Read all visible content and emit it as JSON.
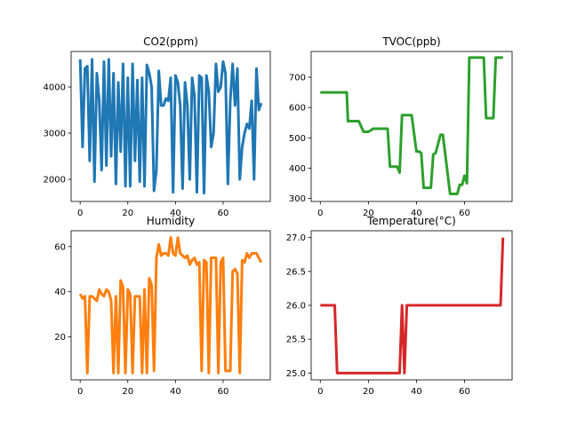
{
  "chart_data": [
    {
      "type": "line",
      "title": "CO2(ppm)",
      "color": "#1f77b4",
      "xlim": [
        -3.8,
        79.8
      ],
      "ylim": [
        1520,
        4770
      ],
      "xticks": [
        0,
        20,
        40,
        60
      ],
      "yticks": [
        2000,
        3000,
        4000
      ],
      "tick_labels_x": [
        "0",
        "20",
        "40",
        "60"
      ],
      "tick_labels_y": [
        "2000",
        "3000",
        "4000"
      ],
      "series": [
        {
          "x": [
            0,
            1,
            2,
            3,
            4,
            5,
            6,
            7,
            8,
            9,
            10,
            11,
            12,
            13,
            14,
            15,
            16,
            17,
            18,
            19,
            20,
            21,
            22,
            23,
            24,
            25,
            26,
            27,
            28,
            29,
            30,
            31,
            32,
            33,
            34,
            35,
            36,
            37,
            38,
            39,
            40,
            41,
            42,
            43,
            44,
            45,
            46,
            47,
            48,
            49,
            50,
            51,
            52,
            53,
            54,
            55,
            56,
            57,
            58,
            59,
            60,
            61,
            62,
            63,
            64,
            65,
            66,
            67,
            68,
            69,
            70,
            71,
            72,
            73,
            74,
            75,
            76
          ],
          "y": [
            4600,
            2700,
            4400,
            4450,
            2400,
            4600,
            1950,
            4300,
            3700,
            2200,
            4550,
            2300,
            4600,
            2500,
            4300,
            1900,
            4100,
            2600,
            4500,
            1850,
            4200,
            1850,
            4500,
            2400,
            4150,
            1950,
            4200,
            1850,
            4480,
            4300,
            4000,
            1750,
            2200,
            4350,
            3600,
            3600,
            3750,
            3700,
            4200,
            1720,
            4250,
            4100,
            3600,
            1800,
            4100,
            3600,
            2000,
            4200,
            3800,
            1720,
            4250,
            4200,
            1700,
            4250,
            3900,
            2700,
            3000,
            4500,
            3900,
            4000,
            4550,
            4300,
            1900,
            3700,
            4500,
            3600,
            4400,
            2000,
            2700,
            3000,
            3200,
            3100,
            3700,
            2000,
            4400,
            3500,
            3650
          ]
        }
      ]
    },
    {
      "type": "line",
      "title": "TVOC(ppb)",
      "color": "#2ca02c",
      "xlim": [
        -3.8,
        79.8
      ],
      "ylim": [
        290,
        785
      ],
      "xticks": [
        0,
        20,
        40,
        60
      ],
      "yticks": [
        300,
        400,
        500,
        600,
        700
      ],
      "tick_labels_x": [
        "0",
        "20",
        "40",
        "60"
      ],
      "tick_labels_y": [
        "300",
        "400",
        "500",
        "600",
        "700"
      ],
      "series": [
        {
          "x": [
            0,
            11,
            11.5,
            16,
            18,
            20,
            22,
            28,
            29,
            32,
            33,
            34,
            37,
            38,
            40,
            41,
            42,
            43,
            44,
            46,
            47,
            48,
            50,
            51,
            54,
            57,
            58,
            59,
            60,
            61,
            62,
            63,
            65,
            68,
            69,
            71,
            72,
            73,
            76
          ],
          "y": [
            650,
            650,
            555,
            555,
            520,
            520,
            530,
            530,
            405,
            405,
            385,
            575,
            575,
            575,
            455,
            455,
            450,
            335,
            335,
            335,
            445,
            450,
            510,
            510,
            315,
            315,
            345,
            345,
            375,
            350,
            765,
            765,
            765,
            765,
            565,
            565,
            565,
            765,
            765
          ]
        }
      ]
    },
    {
      "type": "line",
      "title": "Humidity",
      "color": "#ff7f0e",
      "xlim": [
        -3.8,
        79.8
      ],
      "ylim": [
        1,
        67
      ],
      "xticks": [
        0,
        20,
        40,
        60
      ],
      "yticks": [
        20,
        40,
        60
      ],
      "tick_labels_x": [
        "0",
        "20",
        "40",
        "60"
      ],
      "tick_labels_y": [
        "20",
        "40",
        "60"
      ],
      "series": [
        {
          "x": [
            0,
            1,
            2,
            3,
            4,
            5,
            6,
            7,
            8,
            9,
            10,
            11,
            12,
            13,
            14,
            15,
            16,
            17,
            18,
            19,
            20,
            21,
            22,
            23,
            24,
            25,
            26,
            27,
            28,
            29,
            30,
            31,
            32,
            33,
            34,
            35,
            36,
            37,
            38,
            39,
            40,
            41,
            42,
            43,
            44,
            45,
            46,
            47,
            48,
            49,
            50,
            51,
            52,
            53,
            54,
            55,
            56,
            57,
            58,
            59,
            60,
            61,
            62,
            63,
            64,
            65,
            66,
            67,
            68,
            69,
            70,
            71,
            72,
            73,
            74,
            75,
            76
          ],
          "y": [
            39,
            37,
            38,
            4,
            38,
            38,
            37,
            36,
            41,
            39,
            38,
            41,
            40,
            36,
            4,
            38,
            4,
            45,
            42,
            4,
            41,
            39,
            4,
            38,
            38,
            38,
            4,
            41,
            4,
            46,
            43,
            5,
            55,
            61,
            56,
            57,
            57,
            56,
            64,
            57,
            56,
            64,
            57,
            56,
            55,
            56,
            52,
            54,
            55,
            52,
            53,
            5,
            54,
            53,
            4,
            55,
            55,
            55,
            4,
            53,
            55,
            5,
            5,
            5,
            49,
            50,
            48,
            4,
            54,
            53,
            57,
            55,
            57,
            57,
            57,
            55,
            53
          ]
        }
      ]
    },
    {
      "type": "line",
      "title": "Temperature(°C)",
      "color": "#d62728",
      "xlim": [
        -3.8,
        79.8
      ],
      "ylim": [
        24.9,
        27.1
      ],
      "xticks": [
        0,
        20,
        40,
        60
      ],
      "yticks": [
        25.0,
        25.5,
        26.0,
        26.5,
        27.0
      ],
      "tick_labels_x": [
        "0",
        "20",
        "40",
        "60"
      ],
      "tick_labels_y": [
        "25.0",
        "25.5",
        "26.0",
        "26.5",
        "27.0"
      ],
      "series": [
        {
          "x": [
            0,
            6,
            7,
            32,
            33,
            34,
            35,
            36,
            75,
            76
          ],
          "y": [
            26,
            26,
            25,
            25,
            25,
            26,
            25,
            26,
            26,
            27
          ]
        }
      ]
    }
  ]
}
